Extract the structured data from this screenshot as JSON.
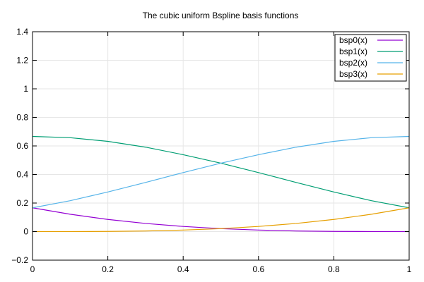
{
  "chart_data": {
    "type": "line",
    "title": "The cubic uniform Bspline basis functions",
    "xlabel": "",
    "ylabel": "",
    "xlim": [
      0,
      1
    ],
    "ylim": [
      -0.2,
      1.4
    ],
    "xticks": [
      0,
      0.2,
      0.4,
      0.6,
      0.8,
      1
    ],
    "xtick_labels": [
      "0",
      "0.2",
      "0.4",
      "0.6",
      "0.8",
      "1"
    ],
    "yticks": [
      -0.2,
      0,
      0.2,
      0.4,
      0.6,
      0.8,
      1,
      1.2,
      1.4
    ],
    "ytick_labels": [
      "−0.2",
      "0",
      "0.2",
      "0.4",
      "0.6",
      "0.8",
      "1",
      "1.2",
      "1.4"
    ],
    "grid": true,
    "legend_position": "top-right",
    "x": [
      0,
      0.1,
      0.2,
      0.3,
      0.4,
      0.5,
      0.6,
      0.7,
      0.8,
      0.9,
      1
    ],
    "series": [
      {
        "name": "bsp0(x)",
        "color": "#9400d3",
        "values": [
          0.1667,
          0.1215,
          0.0853,
          0.0572,
          0.036,
          0.0208,
          0.0107,
          0.0045,
          0.0013,
          0.0002,
          0
        ]
      },
      {
        "name": "bsp1(x)",
        "color": "#009e73",
        "values": [
          0.6667,
          0.6578,
          0.632,
          0.5915,
          0.5387,
          0.4792,
          0.4133,
          0.3442,
          0.2773,
          0.2163,
          0.1667
        ]
      },
      {
        "name": "bsp2(x)",
        "color": "#56b4e9",
        "values": [
          0.1667,
          0.2163,
          0.2773,
          0.3442,
          0.4133,
          0.4792,
          0.5387,
          0.5915,
          0.632,
          0.6578,
          0.6667
        ]
      },
      {
        "name": "bsp3(x)",
        "color": "#e69f00",
        "values": [
          0,
          0.0002,
          0.0013,
          0.0045,
          0.0107,
          0.0208,
          0.036,
          0.0572,
          0.0853,
          0.1215,
          0.1667
        ]
      }
    ]
  }
}
